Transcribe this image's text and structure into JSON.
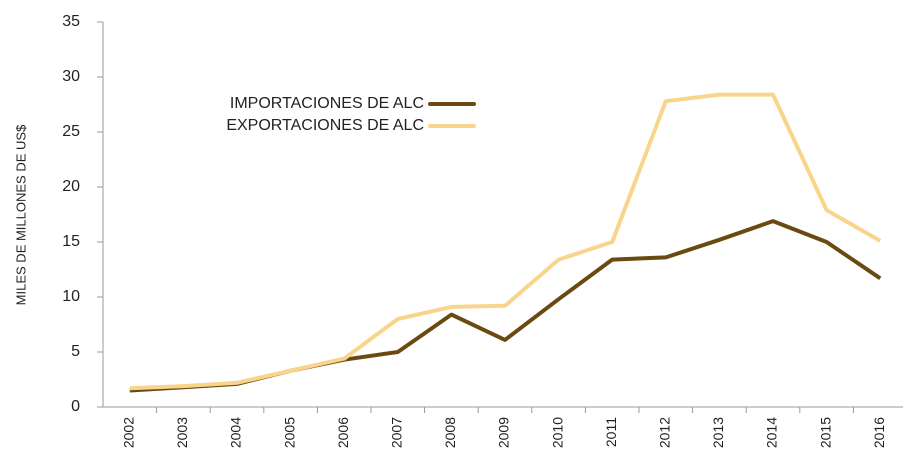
{
  "chart_data": {
    "type": "line",
    "y_label": "MILES DE MILLONES DE US$",
    "categories": [
      "2002",
      "2003",
      "2004",
      "2005",
      "2006",
      "2007",
      "2008",
      "2009",
      "2010",
      "2011",
      "2012",
      "2013",
      "2014",
      "2015",
      "2016"
    ],
    "series": [
      {
        "name": "IMPORTACIONES DE ALC",
        "color": "#6b4a12",
        "values": [
          1.5,
          1.8,
          2.1,
          3.3,
          4.3,
          5.0,
          8.4,
          6.1,
          9.8,
          13.4,
          13.6,
          15.2,
          16.9,
          15.0,
          11.7
        ]
      },
      {
        "name": "EXPORTACIONES DE ALC",
        "color": "#f9d58c",
        "values": [
          1.7,
          1.9,
          2.2,
          3.3,
          4.4,
          8.0,
          9.1,
          9.2,
          13.4,
          15.0,
          27.8,
          28.4,
          28.4,
          17.9,
          15.1
        ]
      }
    ],
    "ylim": [
      0,
      35
    ],
    "yticks": [
      0,
      5,
      10,
      15,
      20,
      25,
      30,
      35
    ]
  }
}
